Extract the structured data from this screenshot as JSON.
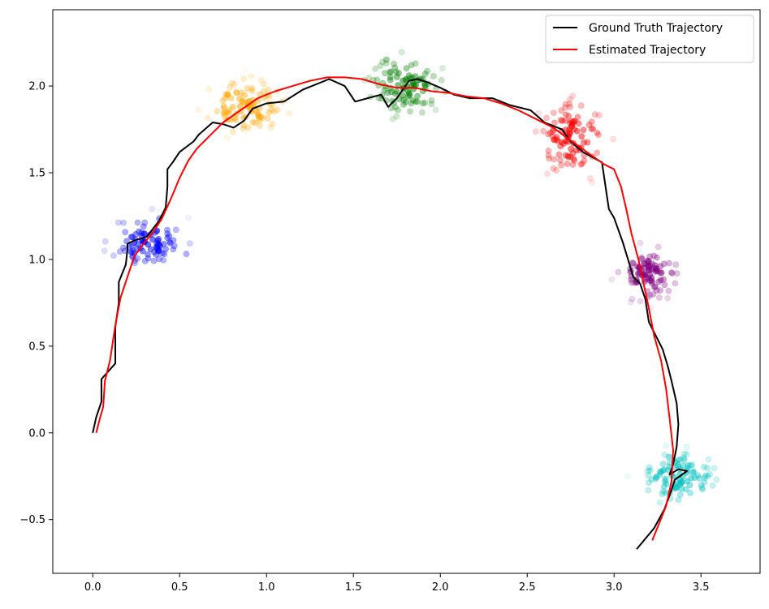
{
  "chart_data": {
    "type": "line",
    "title": "",
    "xlabel": "",
    "ylabel": "",
    "xlim": [
      -0.23,
      3.84
    ],
    "ylim": [
      -0.81,
      2.44
    ],
    "grid": false,
    "legend_position": "top-right",
    "xticks": [
      {
        "value": 0.0,
        "label": "0.0"
      },
      {
        "value": 0.5,
        "label": "0.5"
      },
      {
        "value": 1.0,
        "label": "1.0"
      },
      {
        "value": 1.5,
        "label": "1.5"
      },
      {
        "value": 2.0,
        "label": "2.0"
      },
      {
        "value": 2.5,
        "label": "2.5"
      },
      {
        "value": 3.0,
        "label": "3.0"
      },
      {
        "value": 3.5,
        "label": "3.5"
      }
    ],
    "yticks": [
      {
        "value": -0.5,
        "label": "−0.5"
      },
      {
        "value": 0.0,
        "label": "0.0"
      },
      {
        "value": 0.5,
        "label": "0.5"
      },
      {
        "value": 1.0,
        "label": "1.0"
      },
      {
        "value": 1.5,
        "label": "1.5"
      },
      {
        "value": 2.0,
        "label": "2.0"
      }
    ],
    "series": [
      {
        "name": "Ground Truth Trajectory",
        "color": "#000000",
        "x": [
          0.0,
          0.02,
          0.05,
          0.05,
          0.13,
          0.13,
          0.15,
          0.15,
          0.19,
          0.2,
          0.2,
          0.24,
          0.31,
          0.38,
          0.42,
          0.43,
          0.43,
          0.46,
          0.5,
          0.58,
          0.61,
          0.69,
          0.75,
          0.81,
          0.87,
          0.92,
          1.0,
          1.1,
          1.21,
          1.36,
          1.45,
          1.51,
          1.62,
          1.66,
          1.7,
          1.75,
          1.82,
          1.87,
          1.93,
          2.0,
          2.08,
          2.17,
          2.3,
          2.4,
          2.52,
          2.6,
          2.7,
          2.75,
          2.82,
          2.93,
          2.97,
          3.0,
          3.05,
          3.08,
          3.11,
          3.15,
          3.18,
          3.2,
          3.28,
          3.31,
          3.33,
          3.36,
          3.37,
          3.36,
          3.34,
          3.32,
          3.37,
          3.42,
          3.35,
          3.33,
          3.29,
          3.23,
          3.13
        ],
        "y": [
          0.0,
          0.09,
          0.18,
          0.31,
          0.4,
          0.61,
          0.75,
          0.87,
          0.97,
          1.06,
          1.09,
          1.11,
          1.13,
          1.22,
          1.3,
          1.42,
          1.52,
          1.56,
          1.62,
          1.68,
          1.72,
          1.79,
          1.78,
          1.76,
          1.8,
          1.87,
          1.9,
          1.91,
          1.98,
          2.04,
          2.0,
          1.91,
          1.94,
          1.95,
          1.88,
          1.93,
          2.03,
          2.04,
          2.02,
          1.99,
          1.95,
          1.93,
          1.93,
          1.89,
          1.86,
          1.79,
          1.75,
          1.68,
          1.62,
          1.56,
          1.29,
          1.24,
          1.1,
          1.0,
          0.9,
          0.86,
          0.77,
          0.64,
          0.48,
          0.38,
          0.3,
          0.17,
          0.05,
          -0.08,
          -0.18,
          -0.24,
          -0.21,
          -0.22,
          -0.27,
          -0.33,
          -0.44,
          -0.55,
          -0.67
        ]
      },
      {
        "name": "Estimated Trajectory",
        "color": "#ff0000",
        "x": [
          0.02,
          0.04,
          0.06,
          0.07,
          0.1,
          0.13,
          0.16,
          0.2,
          0.24,
          0.3,
          0.35,
          0.4,
          0.45,
          0.5,
          0.55,
          0.6,
          0.67,
          0.75,
          0.85,
          0.95,
          1.05,
          1.15,
          1.25,
          1.35,
          1.45,
          1.55,
          1.65,
          1.75,
          1.85,
          1.95,
          2.05,
          2.15,
          2.25,
          2.35,
          2.45,
          2.55,
          2.65,
          2.73,
          2.8,
          2.87,
          2.94,
          3.0,
          3.04,
          3.07,
          3.1,
          3.14,
          3.17,
          3.2,
          3.23,
          3.27,
          3.3,
          3.32,
          3.34,
          3.33,
          3.3,
          3.26,
          3.22
        ],
        "y": [
          0.0,
          0.08,
          0.15,
          0.3,
          0.42,
          0.62,
          0.78,
          0.9,
          1.02,
          1.1,
          1.16,
          1.24,
          1.35,
          1.47,
          1.57,
          1.64,
          1.71,
          1.79,
          1.86,
          1.93,
          1.97,
          2.0,
          2.03,
          2.05,
          2.05,
          2.04,
          2.01,
          1.99,
          1.99,
          1.97,
          1.96,
          1.94,
          1.93,
          1.9,
          1.86,
          1.81,
          1.76,
          1.7,
          1.65,
          1.6,
          1.55,
          1.52,
          1.42,
          1.29,
          1.15,
          1.0,
          0.86,
          0.72,
          0.56,
          0.42,
          0.25,
          0.08,
          -0.1,
          -0.28,
          -0.42,
          -0.52,
          -0.62
        ]
      }
    ],
    "clusters": [
      {
        "color": "#0000ff",
        "center": [
          0.32,
          1.1
        ],
        "count": 90,
        "spread": [
          0.1,
          0.07
        ],
        "seed": 11
      },
      {
        "color": "#ffa500",
        "center": [
          0.88,
          1.88
        ],
        "count": 95,
        "spread": [
          0.1,
          0.07
        ],
        "seed": 23
      },
      {
        "color": "#008000",
        "center": [
          1.8,
          2.0
        ],
        "count": 100,
        "spread": [
          0.1,
          0.08
        ],
        "seed": 37
      },
      {
        "color": "#ff0000",
        "center": [
          2.76,
          1.7
        ],
        "count": 100,
        "spread": [
          0.09,
          0.1
        ],
        "seed": 41
      },
      {
        "color": "#800080",
        "center": [
          3.2,
          0.92
        ],
        "count": 90,
        "spread": [
          0.08,
          0.07
        ],
        "seed": 53
      },
      {
        "color": "#00bfbf",
        "center": [
          3.37,
          -0.26
        ],
        "count": 95,
        "spread": [
          0.1,
          0.07
        ],
        "seed": 67
      }
    ]
  }
}
